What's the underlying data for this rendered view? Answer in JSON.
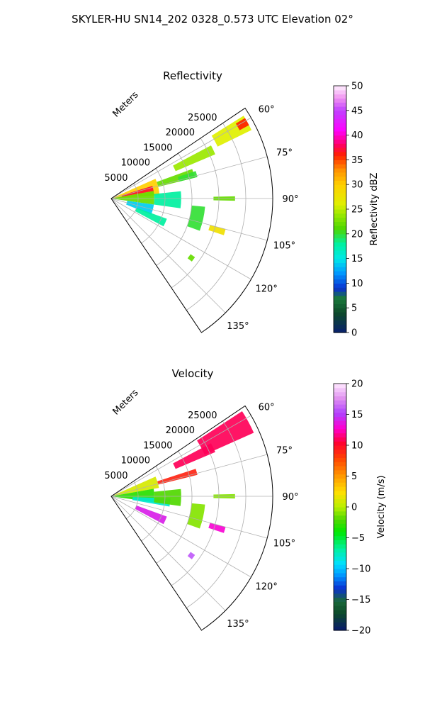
{
  "figure": {
    "suptitle": "SKYLER-HU  SN14_202  0328_0.573 UTC Elevation 02°"
  },
  "chart_data": [
    {
      "type": "heatmap",
      "subtype": "radar-sector-ppi",
      "title": "Reflectivity",
      "range_axis_label": "Meters",
      "range_ticks": [
        5000,
        10000,
        15000,
        20000,
        25000
      ],
      "range_tick_labels": [
        "5000",
        "10000",
        "15000",
        "20000",
        "25000"
      ],
      "range_max": 30000,
      "azimuth_range_deg": [
        56,
        146
      ],
      "azimuth_ticks": [
        60,
        75,
        90,
        105,
        120,
        135
      ],
      "azimuth_tick_labels": [
        "60°",
        "75°",
        "90°",
        "105°",
        "120°",
        "135°"
      ],
      "grid": true,
      "colorbar": {
        "label": "Reflectivity dBZ",
        "vmin": 0,
        "vmax": 50,
        "ticks": [
          0,
          5,
          10,
          15,
          20,
          25,
          30,
          35,
          40,
          45,
          50
        ],
        "tick_labels": [
          "0",
          "5",
          "10",
          "15",
          "20",
          "25",
          "30",
          "35",
          "40",
          "45",
          "50"
        ]
      },
      "echo_regions": [
        {
          "az": [
            66,
            86
          ],
          "r": [
            0,
            9000
          ],
          "value": 30
        },
        {
          "az": [
            73,
            80
          ],
          "r": [
            2000,
            8000
          ],
          "value": 37
        },
        {
          "az": [
            80,
            98
          ],
          "r": [
            0,
            8000
          ],
          "value": 22
        },
        {
          "az": [
            84,
            98
          ],
          "r": [
            8000,
            13000
          ],
          "value": 18
        },
        {
          "az": [
            98,
            112
          ],
          "r": [
            3000,
            8000
          ],
          "value": 14
        },
        {
          "az": [
            110,
            118
          ],
          "r": [
            5000,
            11000
          ],
          "value": 18
        },
        {
          "az": [
            70,
            76
          ],
          "r": [
            9000,
            16000
          ],
          "value": 22
        },
        {
          "az": [
            72,
            76
          ],
          "r": [
            13000,
            16500
          ],
          "value": 20
        },
        {
          "az": [
            62,
            67
          ],
          "r": [
            13000,
            21000
          ],
          "value": 24
        },
        {
          "az": [
            58,
            64
          ],
          "r": [
            22000,
            29000
          ],
          "value": 26
        },
        {
          "az": [
            59,
            62
          ],
          "r": [
            27000,
            29000
          ],
          "value": 36
        },
        {
          "az": [
            89,
            91
          ],
          "r": [
            19000,
            23000
          ],
          "value": 22
        },
        {
          "az": [
            105,
            108
          ],
          "r": [
            19000,
            22000
          ],
          "value": 28
        },
        {
          "az": [
            95,
            110
          ],
          "r": [
            15000,
            17500
          ],
          "value": 20
        },
        {
          "az": [
            125,
            128
          ],
          "r": [
            18000,
            19000
          ],
          "value": 22
        }
      ]
    },
    {
      "type": "heatmap",
      "subtype": "radar-sector-ppi",
      "title": "Velocity",
      "range_axis_label": "Meters",
      "range_ticks": [
        5000,
        10000,
        15000,
        20000,
        25000
      ],
      "range_tick_labels": [
        "5000",
        "10000",
        "15000",
        "20000",
        "25000"
      ],
      "range_max": 30000,
      "azimuth_range_deg": [
        56,
        146
      ],
      "azimuth_ticks": [
        60,
        75,
        90,
        105,
        120,
        135
      ],
      "azimuth_tick_labels": [
        "60°",
        "75°",
        "90°",
        "105°",
        "120°",
        "135°"
      ],
      "grid": true,
      "colorbar": {
        "label": "Velocity (m/s)",
        "vmin": -20,
        "vmax": 20,
        "ticks": [
          -20,
          -15,
          -10,
          -5,
          0,
          5,
          10,
          15,
          20
        ],
        "tick_labels": [
          "−20",
          "−15",
          "−10",
          "−5",
          "0",
          "5",
          "10",
          "15",
          "20"
        ]
      },
      "echo_regions": [
        {
          "az": [
            66,
            80
          ],
          "r": [
            0,
            9000
          ],
          "value": 1
        },
        {
          "az": [
            80,
            98
          ],
          "r": [
            0,
            8000
          ],
          "value": -3
        },
        {
          "az": [
            92,
            100
          ],
          "r": [
            4000,
            11000
          ],
          "value": -8
        },
        {
          "az": [
            84,
            98
          ],
          "r": [
            8000,
            13000
          ],
          "value": -2
        },
        {
          "az": [
            72,
            76
          ],
          "r": [
            9000,
            16500
          ],
          "value": 9
        },
        {
          "az": [
            62,
            67
          ],
          "r": [
            13000,
            21000
          ],
          "value": 11
        },
        {
          "az": [
            57,
            66
          ],
          "r": [
            19000,
            29000
          ],
          "value": 11
        },
        {
          "az": [
            110,
            118
          ],
          "r": [
            5000,
            11000
          ],
          "value": 14
        },
        {
          "az": [
            89,
            91
          ],
          "r": [
            19000,
            23000
          ],
          "value": -1
        },
        {
          "az": [
            105,
            108
          ],
          "r": [
            19000,
            22000
          ],
          "value": 13
        },
        {
          "az": [
            95,
            110
          ],
          "r": [
            15000,
            17500
          ],
          "value": -1
        },
        {
          "az": [
            125,
            128
          ],
          "r": [
            18000,
            19000
          ],
          "value": 16
        }
      ]
    }
  ]
}
